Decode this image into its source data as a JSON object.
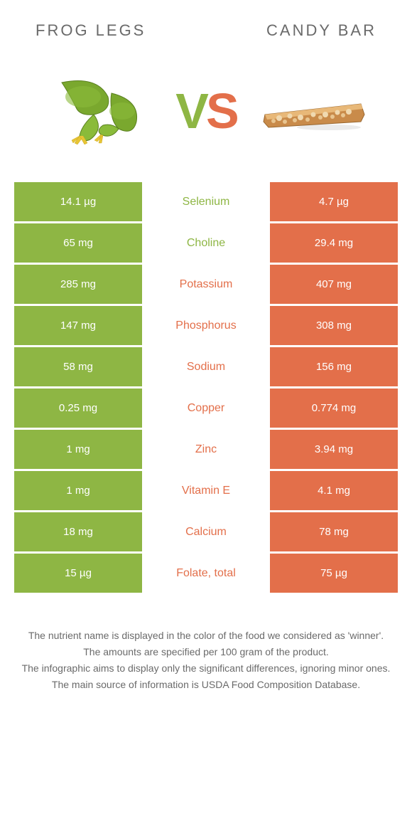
{
  "header": {
    "left": "FROG LEGS",
    "right": "CANDY BAR"
  },
  "vs": {
    "v": "V",
    "s": "S"
  },
  "colors": {
    "left": "#8eb644",
    "right": "#e36f4a",
    "row_left_bg": "#8eb644",
    "row_right_bg": "#e36f4a",
    "text_white": "#ffffff"
  },
  "rows": [
    {
      "left": "14.1 µg",
      "name": "Selenium",
      "right": "4.7 µg",
      "winner": "left"
    },
    {
      "left": "65 mg",
      "name": "Choline",
      "right": "29.4 mg",
      "winner": "left"
    },
    {
      "left": "285 mg",
      "name": "Potassium",
      "right": "407 mg",
      "winner": "right"
    },
    {
      "left": "147 mg",
      "name": "Phosphorus",
      "right": "308 mg",
      "winner": "right"
    },
    {
      "left": "58 mg",
      "name": "Sodium",
      "right": "156 mg",
      "winner": "right"
    },
    {
      "left": "0.25 mg",
      "name": "Copper",
      "right": "0.774 mg",
      "winner": "right"
    },
    {
      "left": "1 mg",
      "name": "Zinc",
      "right": "3.94 mg",
      "winner": "right"
    },
    {
      "left": "1 mg",
      "name": "Vitamin E",
      "right": "4.1 mg",
      "winner": "right"
    },
    {
      "left": "18 mg",
      "name": "Calcium",
      "right": "78 mg",
      "winner": "right"
    },
    {
      "left": "15 µg",
      "name": "Folate, total",
      "right": "75 µg",
      "winner": "right"
    }
  ],
  "footer": {
    "line1": "The nutrient name is displayed in the color of the food we considered as 'winner'.",
    "line2": "The amounts are specified per 100 gram of the product.",
    "line3": "The infographic aims to display only the significant differences, ignoring minor ones.",
    "line4": "The main source of information is USDA Food Composition Database."
  },
  "images": {
    "left_alt": "frog-legs",
    "right_alt": "candy-bar"
  }
}
